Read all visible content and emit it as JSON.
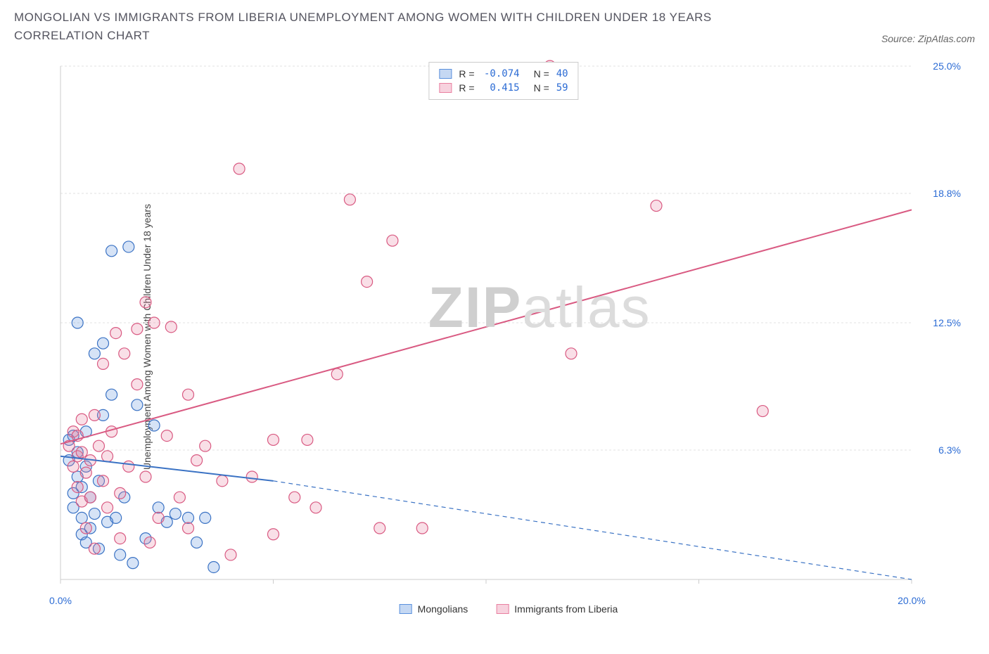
{
  "title": "MONGOLIAN VS IMMIGRANTS FROM LIBERIA UNEMPLOYMENT AMONG WOMEN WITH CHILDREN UNDER 18 YEARS CORRELATION CHART",
  "source": "Source: ZipAtlas.com",
  "watermark_bold": "ZIP",
  "watermark_light": "atlas",
  "chart": {
    "type": "scatter",
    "y_axis_label": "Unemployment Among Women with Children Under 18 years",
    "xlim": [
      0,
      20
    ],
    "ylim": [
      0,
      25
    ],
    "x_ticks": [
      0,
      5,
      10,
      15,
      20
    ],
    "y_ticks": [
      6.3,
      12.5,
      18.8,
      25.0
    ],
    "x_tick_labels": [
      "0.0%",
      "",
      "",
      "",
      "20.0%"
    ],
    "y_tick_labels": [
      "6.3%",
      "12.5%",
      "18.8%",
      "25.0%"
    ],
    "grid_color": "#e0e0e0",
    "axis_color": "#cccccc",
    "background_color": "#ffffff",
    "title_fontsize": 17,
    "label_fontsize": 14,
    "tick_color": "#2b6bd4",
    "marker_radius": 8,
    "marker_fill_opacity": 0.25,
    "marker_stroke_width": 1.2,
    "series": [
      {
        "name": "Mongolians",
        "color": "#5a90dd",
        "stroke": "#3a72c4",
        "R": -0.074,
        "N": 40,
        "trend": {
          "x1": 0,
          "y1": 6.0,
          "x2": 5,
          "y2": 4.8,
          "x2_dash": 20,
          "y2_dash": 0.0
        },
        "points": [
          [
            0.2,
            5.8
          ],
          [
            0.3,
            4.2
          ],
          [
            0.3,
            3.5
          ],
          [
            0.4,
            5.0
          ],
          [
            0.4,
            6.2
          ],
          [
            0.5,
            3.0
          ],
          [
            0.5,
            2.2
          ],
          [
            0.5,
            4.5
          ],
          [
            0.6,
            5.5
          ],
          [
            0.6,
            1.8
          ],
          [
            0.7,
            4.0
          ],
          [
            0.7,
            2.5
          ],
          [
            0.8,
            3.2
          ],
          [
            0.8,
            11.0
          ],
          [
            0.9,
            1.5
          ],
          [
            0.9,
            4.8
          ],
          [
            1.0,
            11.5
          ],
          [
            1.0,
            8.0
          ],
          [
            1.1,
            2.8
          ],
          [
            1.2,
            9.0
          ],
          [
            1.2,
            16.0
          ],
          [
            1.3,
            3.0
          ],
          [
            1.4,
            1.2
          ],
          [
            1.5,
            4.0
          ],
          [
            1.6,
            16.2
          ],
          [
            1.7,
            0.8
          ],
          [
            1.8,
            8.5
          ],
          [
            2.0,
            2.0
          ],
          [
            2.2,
            7.5
          ],
          [
            2.3,
            3.5
          ],
          [
            2.5,
            2.8
          ],
          [
            2.7,
            3.2
          ],
          [
            3.0,
            3.0
          ],
          [
            3.2,
            1.8
          ],
          [
            3.4,
            3.0
          ],
          [
            3.6,
            0.6
          ],
          [
            0.4,
            12.5
          ],
          [
            0.3,
            7.0
          ],
          [
            0.6,
            7.2
          ],
          [
            0.2,
            6.8
          ]
        ]
      },
      {
        "name": "Immigrants from Liberia",
        "color": "#e97fa0",
        "stroke": "#d95a82",
        "R": 0.415,
        "N": 59,
        "trend": {
          "x1": 0,
          "y1": 6.6,
          "x2": 20,
          "y2": 18.0
        },
        "points": [
          [
            0.2,
            6.5
          ],
          [
            0.3,
            7.2
          ],
          [
            0.3,
            5.5
          ],
          [
            0.4,
            6.0
          ],
          [
            0.4,
            4.5
          ],
          [
            0.5,
            3.8
          ],
          [
            0.5,
            7.8
          ],
          [
            0.6,
            5.2
          ],
          [
            0.6,
            2.5
          ],
          [
            0.7,
            4.0
          ],
          [
            0.8,
            8.0
          ],
          [
            0.8,
            1.5
          ],
          [
            0.9,
            6.5
          ],
          [
            1.0,
            4.8
          ],
          [
            1.0,
            10.5
          ],
          [
            1.1,
            3.5
          ],
          [
            1.2,
            7.2
          ],
          [
            1.3,
            12.0
          ],
          [
            1.4,
            2.0
          ],
          [
            1.5,
            11.0
          ],
          [
            1.6,
            5.5
          ],
          [
            1.8,
            9.5
          ],
          [
            1.8,
            12.2
          ],
          [
            2.0,
            13.5
          ],
          [
            2.0,
            5.0
          ],
          [
            2.2,
            12.5
          ],
          [
            2.3,
            3.0
          ],
          [
            2.5,
            7.0
          ],
          [
            2.6,
            12.3
          ],
          [
            3.0,
            2.5
          ],
          [
            3.0,
            9.0
          ],
          [
            3.2,
            5.8
          ],
          [
            3.4,
            6.5
          ],
          [
            3.8,
            4.8
          ],
          [
            4.0,
            1.2
          ],
          [
            4.2,
            20.0
          ],
          [
            4.5,
            5.0
          ],
          [
            5.0,
            2.2
          ],
          [
            5.0,
            6.8
          ],
          [
            5.5,
            4.0
          ],
          [
            5.8,
            6.8
          ],
          [
            6.0,
            3.5
          ],
          [
            6.5,
            10.0
          ],
          [
            6.8,
            18.5
          ],
          [
            7.2,
            14.5
          ],
          [
            7.5,
            2.5
          ],
          [
            7.8,
            16.5
          ],
          [
            8.5,
            2.5
          ],
          [
            11.5,
            25.0
          ],
          [
            12.0,
            11.0
          ],
          [
            14.0,
            18.2
          ],
          [
            16.5,
            8.2
          ],
          [
            0.4,
            7.0
          ],
          [
            0.5,
            6.2
          ],
          [
            0.7,
            5.8
          ],
          [
            1.1,
            6.0
          ],
          [
            1.4,
            4.2
          ],
          [
            2.1,
            1.8
          ],
          [
            2.8,
            4.0
          ]
        ]
      }
    ],
    "stats_box": {
      "rows": [
        {
          "swatch_fill": "rgba(90,144,221,0.35)",
          "swatch_stroke": "#5a90dd",
          "r_label": "R =",
          "r_value": "-0.074",
          "n_label": "N =",
          "n_value": "40"
        },
        {
          "swatch_fill": "rgba(233,127,160,0.35)",
          "swatch_stroke": "#e97fa0",
          "r_label": "R =",
          "r_value": "0.415",
          "n_label": "N =",
          "n_value": "59"
        }
      ]
    },
    "legend": [
      {
        "swatch_fill": "rgba(90,144,221,0.35)",
        "swatch_stroke": "#5a90dd",
        "label": "Mongolians"
      },
      {
        "swatch_fill": "rgba(233,127,160,0.35)",
        "swatch_stroke": "#e97fa0",
        "label": "Immigrants from Liberia"
      }
    ]
  }
}
